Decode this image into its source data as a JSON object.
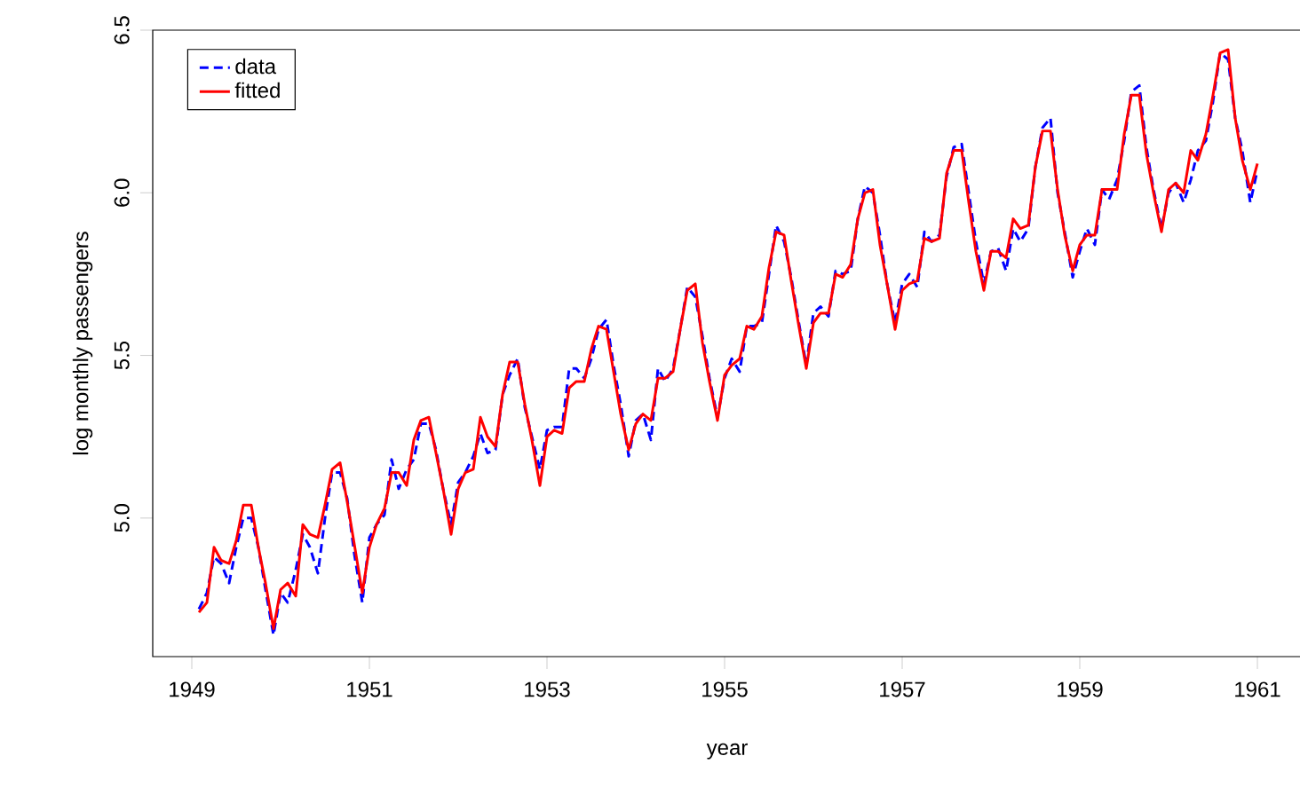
{
  "chart_data": {
    "type": "line",
    "xlabel": "year",
    "ylabel": "log monthly passengers",
    "x": [
      1949.08,
      1949.17,
      1949.25,
      1949.33,
      1949.42,
      1949.5,
      1949.58,
      1949.67,
      1949.75,
      1949.83,
      1949.92,
      1950.0,
      1950.08,
      1950.17,
      1950.25,
      1950.33,
      1950.42,
      1950.5,
      1950.58,
      1950.67,
      1950.75,
      1950.83,
      1950.92,
      1951.0,
      1951.08,
      1951.17,
      1951.25,
      1951.33,
      1951.42,
      1951.5,
      1951.58,
      1951.67,
      1951.75,
      1951.83,
      1951.92,
      1952.0,
      1952.08,
      1952.17,
      1952.25,
      1952.33,
      1952.42,
      1952.5,
      1952.58,
      1952.67,
      1952.75,
      1952.83,
      1952.92,
      1953.0,
      1953.08,
      1953.17,
      1953.25,
      1953.33,
      1953.42,
      1953.5,
      1953.58,
      1953.67,
      1953.75,
      1953.83,
      1953.92,
      1954.0,
      1954.08,
      1954.17,
      1954.25,
      1954.33,
      1954.42,
      1954.5,
      1954.58,
      1954.67,
      1954.75,
      1954.83,
      1954.92,
      1955.0,
      1955.08,
      1955.17,
      1955.25,
      1955.33,
      1955.42,
      1955.5,
      1955.58,
      1955.67,
      1955.75,
      1955.83,
      1955.92,
      1956.0,
      1956.08,
      1956.17,
      1956.25,
      1956.33,
      1956.42,
      1956.5,
      1956.58,
      1956.67,
      1956.75,
      1956.83,
      1956.92,
      1957.0,
      1957.08,
      1957.17,
      1957.25,
      1957.33,
      1957.42,
      1957.5,
      1957.58,
      1957.67,
      1957.75,
      1957.83,
      1957.92,
      1958.0,
      1958.08,
      1958.17,
      1958.25,
      1958.33,
      1958.42,
      1958.5,
      1958.58,
      1958.67,
      1958.75,
      1958.83,
      1958.92,
      1959.0,
      1959.08,
      1959.17,
      1959.25,
      1959.33,
      1959.42,
      1959.5,
      1959.58,
      1959.67,
      1959.75,
      1959.83,
      1959.92,
      1960.0,
      1960.08,
      1960.17,
      1960.25,
      1960.33,
      1960.42,
      1960.5,
      1960.58,
      1960.67,
      1960.75,
      1960.83,
      1960.92,
      1961.0
    ],
    "series": [
      {
        "name": "data",
        "color": "#0000ff",
        "line_style": "dashed",
        "values": [
          4.72,
          4.77,
          4.88,
          4.86,
          4.8,
          4.91,
          5.0,
          5.0,
          4.91,
          4.78,
          4.64,
          4.77,
          4.74,
          4.84,
          4.95,
          4.91,
          4.83,
          5.0,
          5.14,
          5.14,
          5.06,
          4.89,
          4.74,
          4.94,
          4.98,
          5.01,
          5.18,
          5.09,
          5.15,
          5.18,
          5.29,
          5.29,
          5.21,
          5.09,
          4.98,
          5.11,
          5.14,
          5.19,
          5.26,
          5.2,
          5.21,
          5.38,
          5.44,
          5.49,
          5.34,
          5.25,
          5.15,
          5.27,
          5.28,
          5.28,
          5.46,
          5.46,
          5.43,
          5.49,
          5.58,
          5.61,
          5.47,
          5.35,
          5.19,
          5.3,
          5.32,
          5.24,
          5.46,
          5.42,
          5.46,
          5.58,
          5.71,
          5.68,
          5.56,
          5.43,
          5.31,
          5.43,
          5.49,
          5.45,
          5.59,
          5.59,
          5.6,
          5.75,
          5.9,
          5.85,
          5.74,
          5.61,
          5.47,
          5.63,
          5.65,
          5.62,
          5.76,
          5.75,
          5.76,
          5.92,
          6.02,
          6.0,
          5.87,
          5.72,
          5.6,
          5.72,
          5.75,
          5.71,
          5.88,
          5.85,
          5.87,
          6.05,
          6.14,
          6.15,
          6.0,
          5.85,
          5.72,
          5.82,
          5.83,
          5.76,
          5.89,
          5.85,
          5.89,
          6.08,
          6.2,
          6.23,
          6.0,
          5.88,
          5.74,
          5.82,
          5.89,
          5.84,
          6.01,
          5.98,
          6.04,
          6.16,
          6.31,
          6.33,
          6.14,
          6.01,
          5.89,
          6.0,
          6.03,
          5.97,
          6.04,
          6.13,
          6.16,
          6.28,
          6.43,
          6.41,
          6.23,
          6.13,
          5.97,
          6.07
        ]
      },
      {
        "name": "fitted",
        "color": "#ff0000",
        "line_style": "solid",
        "values": [
          4.71,
          4.74,
          4.91,
          4.87,
          4.86,
          4.93,
          5.04,
          5.04,
          4.91,
          4.8,
          4.66,
          4.78,
          4.8,
          4.76,
          4.98,
          4.95,
          4.94,
          5.04,
          5.15,
          5.17,
          5.05,
          4.92,
          4.77,
          4.91,
          4.98,
          5.03,
          5.14,
          5.14,
          5.1,
          5.24,
          5.3,
          5.31,
          5.2,
          5.09,
          4.95,
          5.09,
          5.14,
          5.15,
          5.31,
          5.25,
          5.22,
          5.38,
          5.48,
          5.48,
          5.35,
          5.24,
          5.1,
          5.25,
          5.27,
          5.26,
          5.4,
          5.42,
          5.42,
          5.52,
          5.59,
          5.58,
          5.45,
          5.32,
          5.21,
          5.29,
          5.32,
          5.3,
          5.43,
          5.43,
          5.45,
          5.58,
          5.7,
          5.72,
          5.54,
          5.42,
          5.3,
          5.44,
          5.47,
          5.49,
          5.59,
          5.58,
          5.62,
          5.77,
          5.88,
          5.87,
          5.73,
          5.6,
          5.46,
          5.6,
          5.63,
          5.63,
          5.75,
          5.74,
          5.78,
          5.92,
          6.0,
          6.01,
          5.84,
          5.72,
          5.58,
          5.7,
          5.72,
          5.73,
          5.86,
          5.85,
          5.86,
          6.06,
          6.13,
          6.13,
          5.97,
          5.82,
          5.7,
          5.82,
          5.82,
          5.8,
          5.92,
          5.89,
          5.9,
          6.08,
          6.19,
          6.19,
          6.01,
          5.87,
          5.76,
          5.84,
          5.87,
          5.87,
          6.01,
          6.01,
          6.01,
          6.18,
          6.3,
          6.3,
          6.12,
          6.0,
          5.88,
          6.01,
          6.03,
          6.0,
          6.13,
          6.1,
          6.18,
          6.3,
          6.43,
          6.44,
          6.23,
          6.1,
          6.01,
          6.09
        ]
      }
    ],
    "xlim": [
      1948.56,
      1961.5
    ],
    "ylim": [
      4.574,
      6.5
    ],
    "xticks": [
      1949,
      1951,
      1953,
      1955,
      1957,
      1959,
      1961
    ],
    "yticks": [
      {
        "value": 5,
        "label": "5.0"
      },
      {
        "value": 5.5,
        "label": "5.5"
      },
      {
        "value": 6,
        "label": "6.0"
      },
      {
        "value": 6.5,
        "label": "6.5"
      }
    ],
    "grid": false,
    "legend": "top left",
    "marker": "none"
  }
}
